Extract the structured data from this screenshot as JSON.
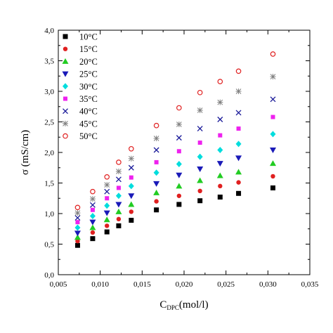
{
  "chart_data": {
    "type": "scatter",
    "xlabel": {
      "main": "C",
      "sub": "DPC",
      "unit": "(mol/l)"
    },
    "ylabel": "σ (mS/cm)",
    "xlim": [
      0.005,
      0.035
    ],
    "ylim": [
      0.0,
      4.0
    ],
    "x_ticks": [
      "0,005",
      "0,010",
      "0,015",
      "0,020",
      "0,025",
      "0,030",
      "0,035"
    ],
    "y_ticks": [
      "0,0",
      "0,5",
      "1,0",
      "1,5",
      "2,0",
      "2,5",
      "3,0",
      "3,5",
      "4,0"
    ],
    "grid": false,
    "legend_position": "top-left",
    "x": [
      0.0073,
      0.0091,
      0.0108,
      0.0122,
      0.0137,
      0.0167,
      0.0194,
      0.0219,
      0.0243,
      0.0265,
      0.0306
    ],
    "series": [
      {
        "name": "10°C",
        "marker": "square",
        "color": "#000000",
        "values": [
          0.48,
          0.59,
          0.7,
          0.8,
          0.89,
          1.06,
          1.15,
          1.21,
          1.27,
          1.33,
          1.42
        ]
      },
      {
        "name": "15°C",
        "marker": "circle",
        "color": "#e02020",
        "values": [
          0.55,
          0.69,
          0.8,
          0.91,
          1.03,
          1.2,
          1.29,
          1.37,
          1.45,
          1.51,
          1.61
        ]
      },
      {
        "name": "20°C",
        "marker": "triangle-up",
        "color": "#22cc22",
        "values": [
          0.61,
          0.77,
          0.9,
          1.03,
          1.15,
          1.34,
          1.45,
          1.54,
          1.62,
          1.68,
          1.82
        ]
      },
      {
        "name": "25°C",
        "marker": "triangle-down",
        "color": "#1a1ab8",
        "values": [
          0.68,
          0.86,
          1.01,
          1.15,
          1.29,
          1.49,
          1.63,
          1.73,
          1.82,
          1.91,
          2.04
        ]
      },
      {
        "name": "30°C",
        "marker": "diamond",
        "color": "#00dddd",
        "values": [
          0.77,
          0.96,
          1.13,
          1.29,
          1.45,
          1.67,
          1.81,
          1.93,
          2.04,
          2.14,
          2.3
        ]
      },
      {
        "name": "35°C",
        "marker": "small-square",
        "color": "#ee22ee",
        "values": [
          0.86,
          1.06,
          1.25,
          1.42,
          1.59,
          1.84,
          2.02,
          2.16,
          2.28,
          2.39,
          2.58
        ]
      },
      {
        "name": "40°C",
        "marker": "x",
        "color": "#1a1a99",
        "values": [
          0.93,
          1.14,
          1.36,
          1.56,
          1.75,
          2.04,
          2.24,
          2.39,
          2.54,
          2.65,
          2.87
        ]
      },
      {
        "name": "45°C",
        "marker": "asterisk",
        "color": "#808080",
        "values": [
          1.01,
          1.24,
          1.47,
          1.69,
          1.9,
          2.23,
          2.46,
          2.69,
          2.82,
          3.0,
          3.24
        ]
      },
      {
        "name": "50°C",
        "marker": "open-circle",
        "color": "#e02020",
        "values": [
          1.1,
          1.36,
          1.6,
          1.84,
          2.06,
          2.44,
          2.73,
          2.98,
          3.16,
          3.33,
          3.61
        ]
      }
    ]
  }
}
